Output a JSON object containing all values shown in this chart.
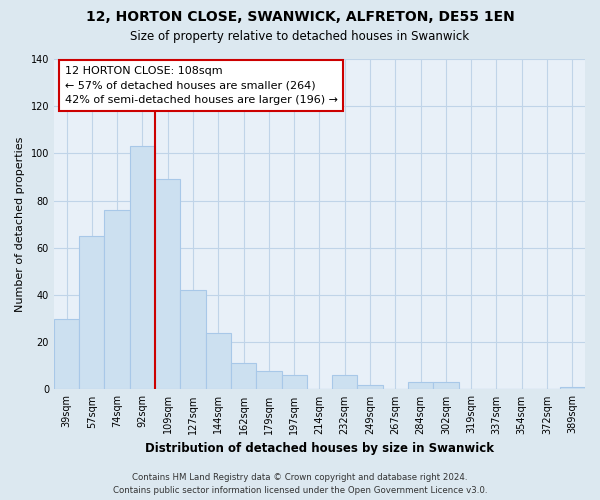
{
  "title": "12, HORTON CLOSE, SWANWICK, ALFRETON, DE55 1EN",
  "subtitle": "Size of property relative to detached houses in Swanwick",
  "xlabel": "Distribution of detached houses by size in Swanwick",
  "ylabel": "Number of detached properties",
  "bar_labels": [
    "39sqm",
    "57sqm",
    "74sqm",
    "92sqm",
    "109sqm",
    "127sqm",
    "144sqm",
    "162sqm",
    "179sqm",
    "197sqm",
    "214sqm",
    "232sqm",
    "249sqm",
    "267sqm",
    "284sqm",
    "302sqm",
    "319sqm",
    "337sqm",
    "354sqm",
    "372sqm",
    "389sqm"
  ],
  "bar_values": [
    30,
    65,
    76,
    103,
    89,
    42,
    24,
    11,
    8,
    6,
    0,
    6,
    2,
    0,
    3,
    3,
    0,
    0,
    0,
    0,
    1
  ],
  "bar_color": "#cce0f0",
  "bar_edge_color": "#a8c8e8",
  "vline_color": "#cc0000",
  "vline_x_index": 3,
  "annotation_title": "12 HORTON CLOSE: 108sqm",
  "annotation_line1": "← 57% of detached houses are smaller (264)",
  "annotation_line2": "42% of semi-detached houses are larger (196) →",
  "annotation_box_color": "#ffffff",
  "annotation_box_edge": "#cc0000",
  "ylim": [
    0,
    140
  ],
  "yticks": [
    0,
    20,
    40,
    60,
    80,
    100,
    120,
    140
  ],
  "footer1": "Contains HM Land Registry data © Crown copyright and database right 2024.",
  "footer2": "Contains public sector information licensed under the Open Government Licence v3.0.",
  "bg_color": "#dce8f0",
  "plot_bg_color": "#e8f0f8",
  "grid_color": "#c0d4e8"
}
